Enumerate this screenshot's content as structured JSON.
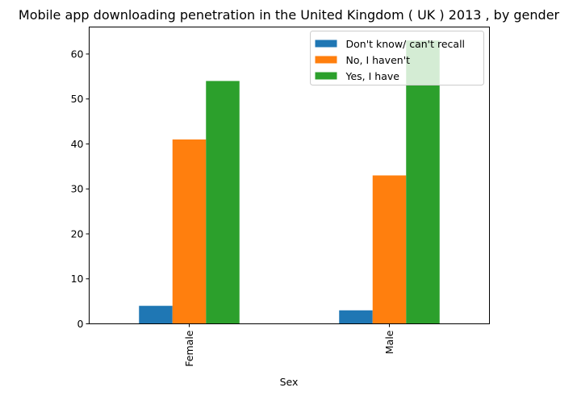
{
  "chart_data": {
    "type": "bar",
    "title": "Mobile app downloading penetration in the United Kingdom ( UK ) 2013 , by gender",
    "xlabel": "Sex",
    "ylabel": "",
    "categories": [
      "Female",
      "Male"
    ],
    "series": [
      {
        "name": "Don't know/ can't recall",
        "values": [
          4,
          3
        ],
        "color": "#1f77b4"
      },
      {
        "name": "No, I haven't",
        "values": [
          41,
          33
        ],
        "color": "#ff7f0e"
      },
      {
        "name": "Yes, I have",
        "values": [
          54,
          63
        ],
        "color": "#2ca02c"
      }
    ],
    "ylim": [
      0,
      66
    ],
    "yticks": [
      0,
      10,
      20,
      30,
      40,
      50,
      60
    ],
    "grid": false,
    "legend_position": "top-right"
  }
}
